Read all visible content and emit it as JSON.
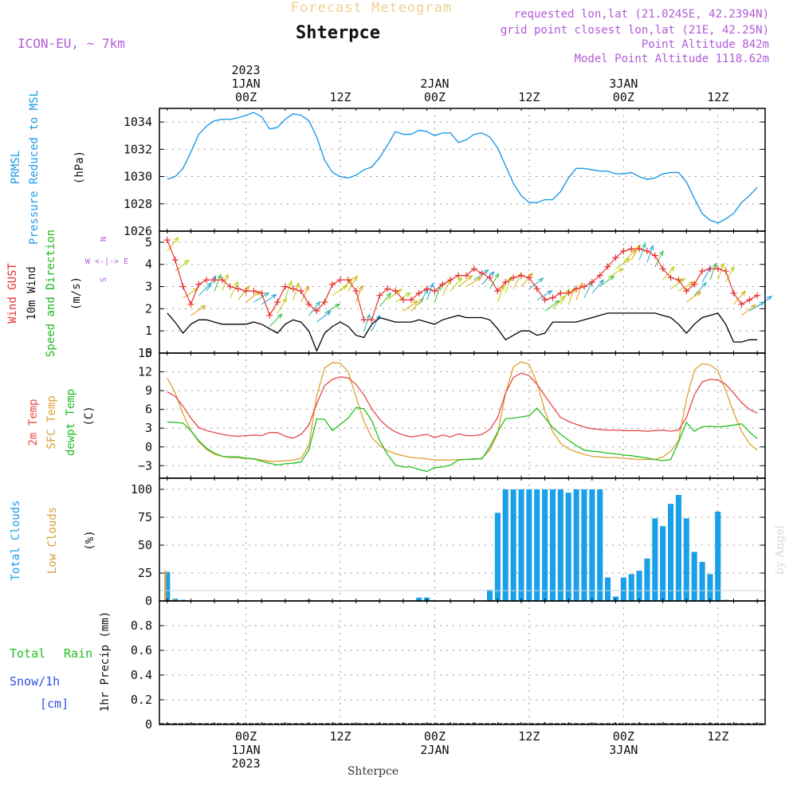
{
  "header": {
    "top_title": "Forecast Meteogram",
    "station": "Shterpce",
    "model": "ICON-EU, ~ 7km",
    "requested": "requested lon,lat (21.0245E, 42.2394N)",
    "closest": "grid point closest lon,lat (21E, 42.25N)",
    "point_alt": "Point Altitude 842m",
    "model_alt": "Model Point Altitude 1118.62m",
    "footer_station": "Shterpce",
    "credit": "by Angel"
  },
  "time_axis": {
    "top_labels": [
      {
        "t": 0,
        "lines": [
          "2023",
          "1JAN",
          "00Z"
        ]
      },
      {
        "t": 12,
        "lines": [
          "12Z"
        ]
      },
      {
        "t": 24,
        "lines": [
          "2JAN",
          "00Z"
        ]
      },
      {
        "t": 36,
        "lines": [
          "12Z"
        ]
      },
      {
        "t": 48,
        "lines": [
          "3JAN",
          "00Z"
        ]
      },
      {
        "t": 60,
        "lines": [
          "12Z"
        ]
      }
    ],
    "bottom_labels": [
      {
        "t": 0,
        "lines": [
          "00Z",
          "1JAN",
          "2023"
        ]
      },
      {
        "t": 12,
        "lines": [
          "12Z"
        ]
      },
      {
        "t": 24,
        "lines": [
          "00Z",
          "2JAN"
        ]
      },
      {
        "t": 36,
        "lines": [
          "12Z"
        ]
      },
      {
        "t": 48,
        "lines": [
          "00Z",
          "3JAN"
        ]
      },
      {
        "t": 60,
        "lines": [
          "12Z"
        ]
      }
    ]
  },
  "colors": {
    "pressure": "#1e9ae8",
    "gust": "#e83030",
    "wind": "#000000",
    "wind_title": "#1cb81c",
    "temp2m": "#e84848",
    "sfctemp": "#e0a030",
    "dewpt": "#20c020",
    "total_clouds": "#1aa0e8",
    "low_clouds": "#d8a040",
    "rain_title": "#20c020",
    "snow_title": "#3050e0",
    "header_purple": "#b05ad8",
    "grid": "#999999"
  },
  "panels": {
    "pressure": {
      "ylabels": [
        "PRMSL",
        "Pressure Reduced to MSL",
        "(hPa)"
      ]
    },
    "wind": {
      "ylabels": [
        "Wind GUST",
        "10m Wind",
        "Speed and Direction",
        "(m/s)"
      ],
      "compass": [
        "N",
        "W <-|-> E",
        "S"
      ]
    },
    "temp": {
      "ylabels": [
        "2m Temp",
        "SFC Temp",
        "dewpt Temp",
        "(C)"
      ]
    },
    "clouds": {
      "ylabels": [
        "Total Clouds",
        "Low Clouds",
        "(%)"
      ]
    },
    "precip": {
      "ylabels": [
        "Total",
        "Rain",
        "Snow/1h",
        "[cm]",
        "1hr Precip (mm)"
      ]
    }
  },
  "chart_data": [
    {
      "type": "line",
      "ylabel": "(hPa)",
      "ylim": [
        1026,
        1035
      ],
      "yticks": [
        1026,
        1028,
        1030,
        1032,
        1034
      ],
      "x": [
        -10,
        -9,
        -8,
        -7,
        -6,
        -5,
        -4,
        -3,
        -2,
        -1,
        0,
        1,
        2,
        3,
        4,
        5,
        6,
        7,
        8,
        9,
        10,
        11,
        12,
        13,
        14,
        15,
        16,
        17,
        18,
        19,
        20,
        21,
        22,
        23,
        24,
        25,
        26,
        27,
        28,
        29,
        30,
        31,
        32,
        33,
        34,
        35,
        36,
        37,
        38,
        39,
        40,
        41,
        42,
        43,
        44,
        45,
        46,
        47,
        48,
        49,
        50,
        51,
        52,
        53,
        54,
        55,
        56,
        57,
        58,
        59,
        60,
        61,
        62,
        63,
        64,
        65
      ],
      "series": [
        {
          "values": [
            1029.8,
            1030.0,
            1030.6,
            1031.8,
            1033.1,
            1033.7,
            1034.1,
            1034.2,
            1034.2,
            1034.3,
            1034.5,
            1034.7,
            1034.4,
            1033.5,
            1033.6,
            1034.2,
            1034.6,
            1034.5,
            1034.1,
            1032.9,
            1031.2,
            1030.3,
            1030.0,
            1029.9,
            1030.1,
            1030.5,
            1030.7,
            1031.4,
            1032.3,
            1033.3,
            1033.1,
            1033.1,
            1033.4,
            1033.3,
            1033.0,
            1033.2,
            1033.2,
            1032.5,
            1032.7,
            1033.1,
            1033.2,
            1032.9,
            1032.1,
            1030.8,
            1029.5,
            1028.6,
            1028.1,
            1028.1,
            1028.3,
            1028.3,
            1028.9,
            1029.9,
            1030.6,
            1030.6,
            1030.5,
            1030.4,
            1030.4,
            1030.2,
            1030.2,
            1030.3,
            1030.0,
            1029.8,
            1029.9,
            1030.2,
            1030.3,
            1030.3,
            1029.6,
            1028.4,
            1027.3,
            1026.8,
            1026.6,
            1026.9,
            1027.3,
            1028.1,
            1028.6,
            1029.2
          ]
        }
      ]
    },
    {
      "type": "line",
      "ylabel": "(m/s)",
      "ylim": [
        0,
        5.5
      ],
      "yticks": [
        0,
        1,
        2,
        3,
        4,
        5
      ],
      "x": [
        -10,
        -9,
        -8,
        -7,
        -6,
        -5,
        -4,
        -3,
        -2,
        -1,
        0,
        1,
        2,
        3,
        4,
        5,
        6,
        7,
        8,
        9,
        10,
        11,
        12,
        13,
        14,
        15,
        16,
        17,
        18,
        19,
        20,
        21,
        22,
        23,
        24,
        25,
        26,
        27,
        28,
        29,
        30,
        31,
        32,
        33,
        34,
        35,
        36,
        37,
        38,
        39,
        40,
        41,
        42,
        43,
        44,
        45,
        46,
        47,
        48,
        49,
        50,
        51,
        52,
        53,
        54,
        55,
        56,
        57,
        58,
        59,
        60,
        61,
        62,
        63,
        64,
        65
      ],
      "series": [
        {
          "name": "Wind GUST",
          "values": [
            5.1,
            4.2,
            3.0,
            2.2,
            3.1,
            3.3,
            3.3,
            3.3,
            3.0,
            2.9,
            2.8,
            2.8,
            2.7,
            1.7,
            2.3,
            3.0,
            2.9,
            2.8,
            2.2,
            1.9,
            2.3,
            3.1,
            3.3,
            3.3,
            2.8,
            1.5,
            1.5,
            2.6,
            2.9,
            2.8,
            2.4,
            2.4,
            2.7,
            2.9,
            2.8,
            3.1,
            3.3,
            3.5,
            3.5,
            3.8,
            3.6,
            3.4,
            2.8,
            3.2,
            3.4,
            3.5,
            3.4,
            2.9,
            2.4,
            2.5,
            2.7,
            2.7,
            2.9,
            3.0,
            3.2,
            3.5,
            3.9,
            4.3,
            4.6,
            4.7,
            4.7,
            4.6,
            4.4,
            3.8,
            3.4,
            3.3,
            2.8,
            3.1,
            3.7,
            3.8,
            3.8,
            3.7,
            2.7,
            2.2,
            2.4,
            2.6
          ]
        },
        {
          "name": "10m Wind",
          "values": [
            1.8,
            1.4,
            0.9,
            1.3,
            1.5,
            1.5,
            1.4,
            1.3,
            1.3,
            1.3,
            1.3,
            1.4,
            1.3,
            1.1,
            0.9,
            1.3,
            1.5,
            1.4,
            1.0,
            0.1,
            0.9,
            1.2,
            1.4,
            1.2,
            0.8,
            0.7,
            1.3,
            1.6,
            1.5,
            1.4,
            1.4,
            1.4,
            1.5,
            1.4,
            1.3,
            1.5,
            1.6,
            1.7,
            1.6,
            1.6,
            1.6,
            1.5,
            1.1,
            0.6,
            0.8,
            1.0,
            1.0,
            0.8,
            0.9,
            1.4,
            1.4,
            1.4,
            1.4,
            1.5,
            1.6,
            1.7,
            1.8,
            1.8,
            1.8,
            1.8,
            1.8,
            1.8,
            1.8,
            1.7,
            1.6,
            1.3,
            0.9,
            1.3,
            1.6,
            1.7,
            1.8,
            1.3,
            0.5,
            0.5,
            0.6,
            0.6
          ]
        }
      ]
    },
    {
      "type": "line",
      "ylabel": "(C)",
      "ylim": [
        -5,
        15
      ],
      "yticks": [
        -3,
        0,
        3,
        6,
        9,
        12,
        15
      ],
      "x": [
        -10,
        -9,
        -8,
        -7,
        -6,
        -5,
        -4,
        -3,
        -2,
        -1,
        0,
        1,
        2,
        3,
        4,
        5,
        6,
        7,
        8,
        9,
        10,
        11,
        12,
        13,
        14,
        15,
        16,
        17,
        18,
        19,
        20,
        21,
        22,
        23,
        24,
        25,
        26,
        27,
        28,
        29,
        30,
        31,
        32,
        33,
        34,
        35,
        36,
        37,
        38,
        39,
        40,
        41,
        42,
        43,
        44,
        45,
        46,
        47,
        48,
        49,
        50,
        51,
        52,
        53,
        54,
        55,
        56,
        57,
        58,
        59,
        60,
        61,
        62,
        63,
        64,
        65
      ],
      "series": [
        {
          "name": "2m Temp",
          "values": [
            8.8,
            8.1,
            6.5,
            4.6,
            3.1,
            2.6,
            2.3,
            2.0,
            1.8,
            1.7,
            1.8,
            1.9,
            1.8,
            2.3,
            2.3,
            1.7,
            1.4,
            2.0,
            3.5,
            6.9,
            9.8,
            10.8,
            11.2,
            11.0,
            10.0,
            8.3,
            6.1,
            4.4,
            3.2,
            2.4,
            1.9,
            1.6,
            1.8,
            2.0,
            1.5,
            1.9,
            1.6,
            2.1,
            1.8,
            1.8,
            2.0,
            2.8,
            4.7,
            8.6,
            11.1,
            11.8,
            11.4,
            10.0,
            8.2,
            6.4,
            4.7,
            4.1,
            3.6,
            3.2,
            2.9,
            2.8,
            2.7,
            2.7,
            2.6,
            2.6,
            2.6,
            2.5,
            2.6,
            2.7,
            2.5,
            2.7,
            4.7,
            8.3,
            10.4,
            10.8,
            10.7,
            10.0,
            8.6,
            7.1,
            6.0,
            5.4
          ]
        },
        {
          "name": "SFC Temp",
          "values": [
            11.0,
            8.7,
            5.3,
            2.6,
            0.8,
            -0.4,
            -1.2,
            -1.5,
            -1.7,
            -1.7,
            -1.9,
            -1.9,
            -2.1,
            -2.3,
            -2.3,
            -2.2,
            -2.1,
            -1.8,
            0.2,
            8.2,
            12.6,
            13.5,
            13.4,
            12.0,
            7.9,
            4.1,
            1.5,
            0.2,
            -0.6,
            -1.1,
            -1.4,
            -1.7,
            -1.8,
            -1.9,
            -2.1,
            -2.1,
            -2.1,
            -2.0,
            -2.0,
            -2.0,
            -1.8,
            -0.5,
            2.1,
            8.5,
            12.8,
            13.6,
            13.2,
            10.2,
            5.8,
            2.4,
            0.6,
            -0.3,
            -0.8,
            -1.2,
            -1.5,
            -1.6,
            -1.7,
            -1.7,
            -1.8,
            -1.9,
            -2.0,
            -2.0,
            -2.0,
            -1.6,
            -0.7,
            1.0,
            7.6,
            12.3,
            13.3,
            13.1,
            12.2,
            9.0,
            5.5,
            2.5,
            0.5,
            -0.5
          ]
        },
        {
          "name": "dewpt Temp",
          "values": [
            4.0,
            3.9,
            3.8,
            2.6,
            1.0,
            -0.2,
            -1.0,
            -1.5,
            -1.6,
            -1.6,
            -1.8,
            -1.9,
            -2.3,
            -2.6,
            -2.9,
            -2.7,
            -2.6,
            -2.4,
            -0.5,
            4.5,
            4.4,
            2.6,
            3.6,
            4.6,
            6.3,
            6.1,
            4.2,
            1.0,
            -1.2,
            -2.9,
            -3.2,
            -3.2,
            -3.6,
            -3.9,
            -3.3,
            -3.2,
            -2.9,
            -2.1,
            -2.0,
            -1.9,
            -1.9,
            0.0,
            2.4,
            4.5,
            4.6,
            4.8,
            5.0,
            6.2,
            4.7,
            3.1,
            2.0,
            1.1,
            0.2,
            -0.5,
            -0.7,
            -0.8,
            -1.0,
            -1.1,
            -1.3,
            -1.4,
            -1.6,
            -1.8,
            -2.0,
            -2.2,
            -2.0,
            0.8,
            3.9,
            2.5,
            3.2,
            3.3,
            3.2,
            3.3,
            3.5,
            3.7,
            2.4,
            1.3
          ]
        }
      ]
    },
    {
      "type": "bar",
      "ylabel": "(%)",
      "ylim": [
        0,
        110
      ],
      "yticks": [
        0,
        25,
        50,
        75,
        100
      ],
      "x": [
        -10,
        -9,
        -8,
        -7,
        -6,
        -5,
        -4,
        -3,
        -2,
        -1,
        0,
        1,
        2,
        3,
        4,
        5,
        6,
        7,
        8,
        9,
        10,
        11,
        12,
        13,
        14,
        15,
        16,
        17,
        18,
        19,
        20,
        21,
        22,
        23,
        24,
        25,
        26,
        27,
        28,
        29,
        30,
        31,
        32,
        33,
        34,
        35,
        36,
        37,
        38,
        39,
        40,
        41,
        42,
        43,
        44,
        45,
        46,
        47,
        48,
        49,
        50,
        51,
        52,
        53,
        54,
        55,
        56,
        57,
        58,
        59,
        60,
        61,
        62,
        63,
        64,
        65
      ],
      "series": [
        {
          "name": "Total Clouds",
          "values": [
            26,
            2,
            1,
            0,
            0,
            0,
            0,
            0,
            0,
            0,
            0,
            0,
            0,
            0,
            0,
            0,
            0,
            0,
            1,
            0,
            0,
            0,
            0,
            0,
            0,
            0,
            0,
            0,
            0,
            0,
            0,
            0,
            3,
            3,
            0,
            0,
            0,
            0,
            0,
            0,
            0,
            10,
            79,
            100,
            100,
            100,
            100,
            100,
            100,
            100,
            100,
            97,
            100,
            100,
            100,
            100,
            21,
            4,
            21,
            24,
            27,
            38,
            74,
            67,
            87,
            95,
            74,
            44,
            35,
            24,
            80,
            1,
            0,
            0,
            0,
            0
          ]
        },
        {
          "name": "Low Clouds",
          "values": [
            27,
            2,
            0,
            0,
            0,
            0,
            0,
            0,
            0,
            0,
            0,
            0,
            0,
            0,
            0,
            0,
            0,
            0,
            0,
            0,
            0,
            0,
            0,
            0,
            0,
            0,
            0,
            0,
            0,
            0,
            0,
            0,
            0,
            0,
            0,
            0,
            0,
            0,
            0,
            0,
            0,
            0,
            0,
            0,
            0,
            0,
            0,
            0,
            0,
            0,
            0,
            0,
            0,
            0,
            0,
            0,
            0,
            0,
            0,
            0,
            0,
            0,
            0,
            0,
            0,
            0,
            0,
            0,
            0,
            0,
            0,
            0,
            0,
            0,
            0,
            0
          ]
        }
      ]
    },
    {
      "type": "bar",
      "ylabel": "1hr Precip (mm)",
      "ylim": [
        0,
        1
      ],
      "yticks": [
        0,
        0.2,
        0.4,
        0.6,
        0.8
      ],
      "series": [
        {
          "name": "Total",
          "values": []
        },
        {
          "name": "Rain",
          "values": []
        },
        {
          "name": "Snow/1h",
          "values": []
        }
      ]
    }
  ]
}
